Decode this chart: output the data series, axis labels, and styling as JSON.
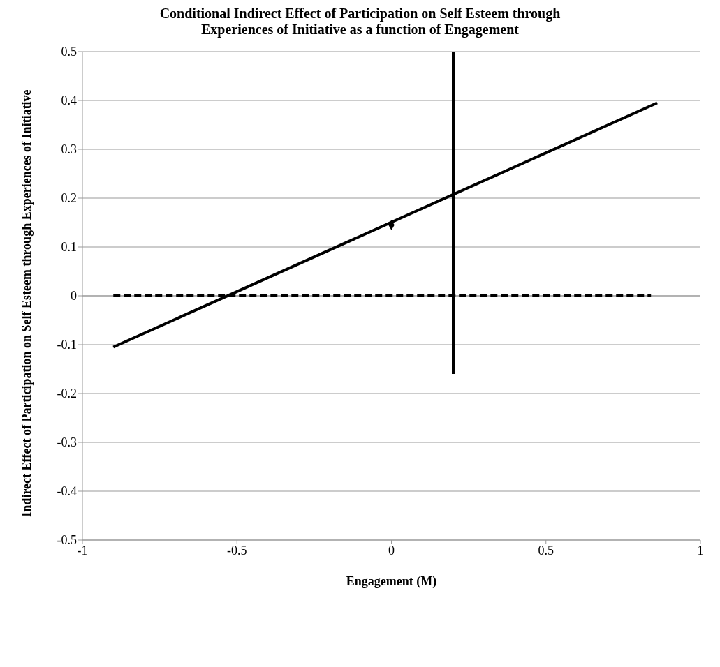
{
  "chart_data": {
    "type": "line",
    "title": "Conditional Indirect Effect of Participation on Self Esteem through Experiences of Initiative as a function of Engagement",
    "xlabel": "Engagement (M)",
    "ylabel": "Indirect Effect of Participation on Self Esteem through Experiences of Initiative",
    "series": [
      {
        "color": "#000000",
        "x": [
          -0.9,
          0.86
        ],
        "values": [
          -0.105,
          0.395
        ],
        "line_style": "solid"
      },
      {
        "color": "#000000",
        "x": [
          -0.9,
          0.84
        ],
        "values": [
          0,
          0
        ],
        "line_style": "dashed"
      },
      {
        "color": "#000000",
        "x": [
          0.2,
          0.2
        ],
        "values": [
          -0.16,
          0.5
        ],
        "line_style": "solid"
      },
      {
        "type": "scatter",
        "color": "#000000",
        "x": [
          0
        ],
        "values": [
          0.145
        ],
        "marker": "diamond"
      }
    ],
    "xlim": [
      -1,
      1
    ],
    "xticks": [
      -1,
      -0.5,
      0,
      0.5,
      1
    ],
    "ylim": [
      -0.5,
      0.5
    ],
    "yticks": [
      -0.5,
      -0.4,
      -0.3,
      -0.2,
      -0.1,
      0,
      0.1,
      0.2,
      0.3,
      0.4,
      0.5
    ],
    "grid": "y"
  }
}
